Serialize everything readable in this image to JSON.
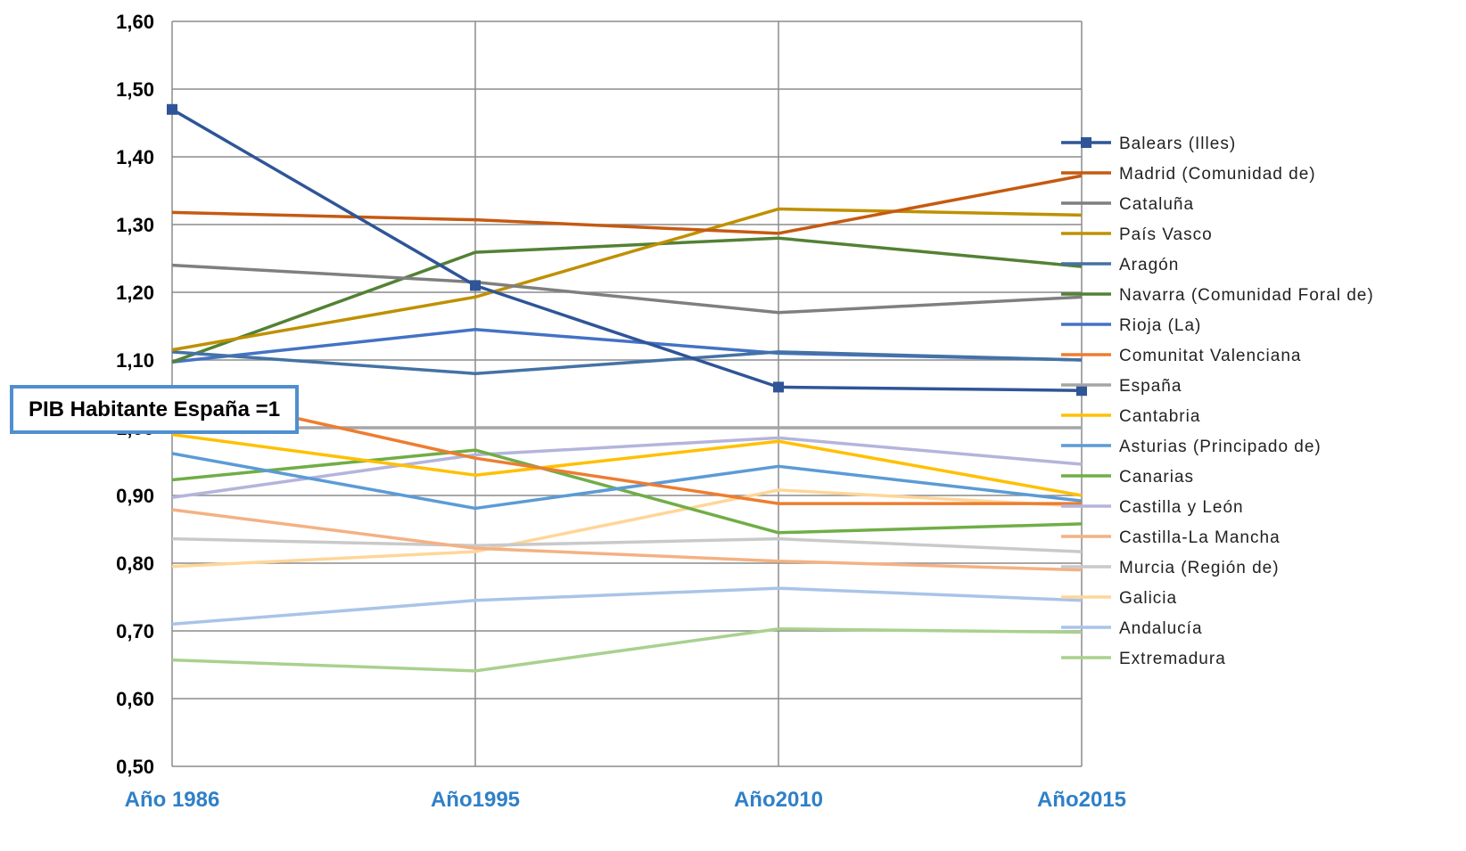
{
  "chart_data": {
    "type": "line",
    "categories": [
      "Año 1986",
      "Año1995",
      "Año2010",
      "Año2015"
    ],
    "ylim": [
      0.5,
      1.6
    ],
    "yticks": [
      "0,50",
      "0,60",
      "0,70",
      "0,80",
      "0,90",
      "1,00",
      "1,10",
      "1,20",
      "1,30",
      "1,40",
      "1,50",
      "1,60"
    ],
    "grid": true,
    "legend": "right",
    "annotation": "PIB Habitante España =1",
    "series": [
      {
        "name": "Balears (Illes)",
        "values": [
          1.47,
          1.21,
          1.06,
          1.055
        ],
        "color": "#2f5597",
        "marker": "square"
      },
      {
        "name": "Madrid (Comunidad de)",
        "values": [
          1.318,
          1.307,
          1.287,
          1.372
        ],
        "color": "#c55a11"
      },
      {
        "name": "Cataluña",
        "values": [
          1.24,
          1.215,
          1.17,
          1.193
        ],
        "color": "#7f7f7f"
      },
      {
        "name": "País Vasco",
        "values": [
          1.115,
          1.193,
          1.323,
          1.314
        ],
        "color": "#bf9000"
      },
      {
        "name": "Aragón",
        "values": [
          1.112,
          1.08,
          1.112,
          1.1
        ],
        "color": "#4472a4"
      },
      {
        "name": "Navarra (Comunidad Foral de)",
        "values": [
          1.097,
          1.259,
          1.28,
          1.238
        ],
        "color": "#538135"
      },
      {
        "name": "Rioja (La)",
        "values": [
          1.097,
          1.145,
          1.11,
          1.1
        ],
        "color": "#4472c4"
      },
      {
        "name": "Comunitat Valenciana",
        "values": [
          1.055,
          0.955,
          0.888,
          0.888
        ],
        "color": "#ed7d31"
      },
      {
        "name": "España",
        "values": [
          1.0,
          1.0,
          1.0,
          1.0
        ],
        "color": "#a5a5a5"
      },
      {
        "name": "Cantabria",
        "values": [
          0.99,
          0.93,
          0.98,
          0.9
        ],
        "color": "#ffc000"
      },
      {
        "name": "Asturias (Principado de)",
        "values": [
          0.962,
          0.881,
          0.943,
          0.892
        ],
        "color": "#5b9bd5"
      },
      {
        "name": "Canarias",
        "values": [
          0.923,
          0.967,
          0.845,
          0.858
        ],
        "color": "#70ad47"
      },
      {
        "name": "Castilla y León",
        "values": [
          0.897,
          0.96,
          0.985,
          0.946
        ],
        "color": "#b4b4dc"
      },
      {
        "name": "Castilla-La Mancha",
        "values": [
          0.879,
          0.822,
          0.803,
          0.79
        ],
        "color": "#f4b183"
      },
      {
        "name": "Murcia (Región de)",
        "values": [
          0.836,
          0.826,
          0.836,
          0.817
        ],
        "color": "#c9c9c9"
      },
      {
        "name": "Galicia",
        "values": [
          0.795,
          0.817,
          0.908,
          0.884
        ],
        "color": "#ffd699"
      },
      {
        "name": "Andalucía",
        "values": [
          0.71,
          0.745,
          0.763,
          0.745
        ],
        "color": "#a9c4e8"
      },
      {
        "name": "Extremadura",
        "values": [
          0.657,
          0.641,
          0.703,
          0.698
        ],
        "color": "#a9d18e"
      }
    ]
  }
}
